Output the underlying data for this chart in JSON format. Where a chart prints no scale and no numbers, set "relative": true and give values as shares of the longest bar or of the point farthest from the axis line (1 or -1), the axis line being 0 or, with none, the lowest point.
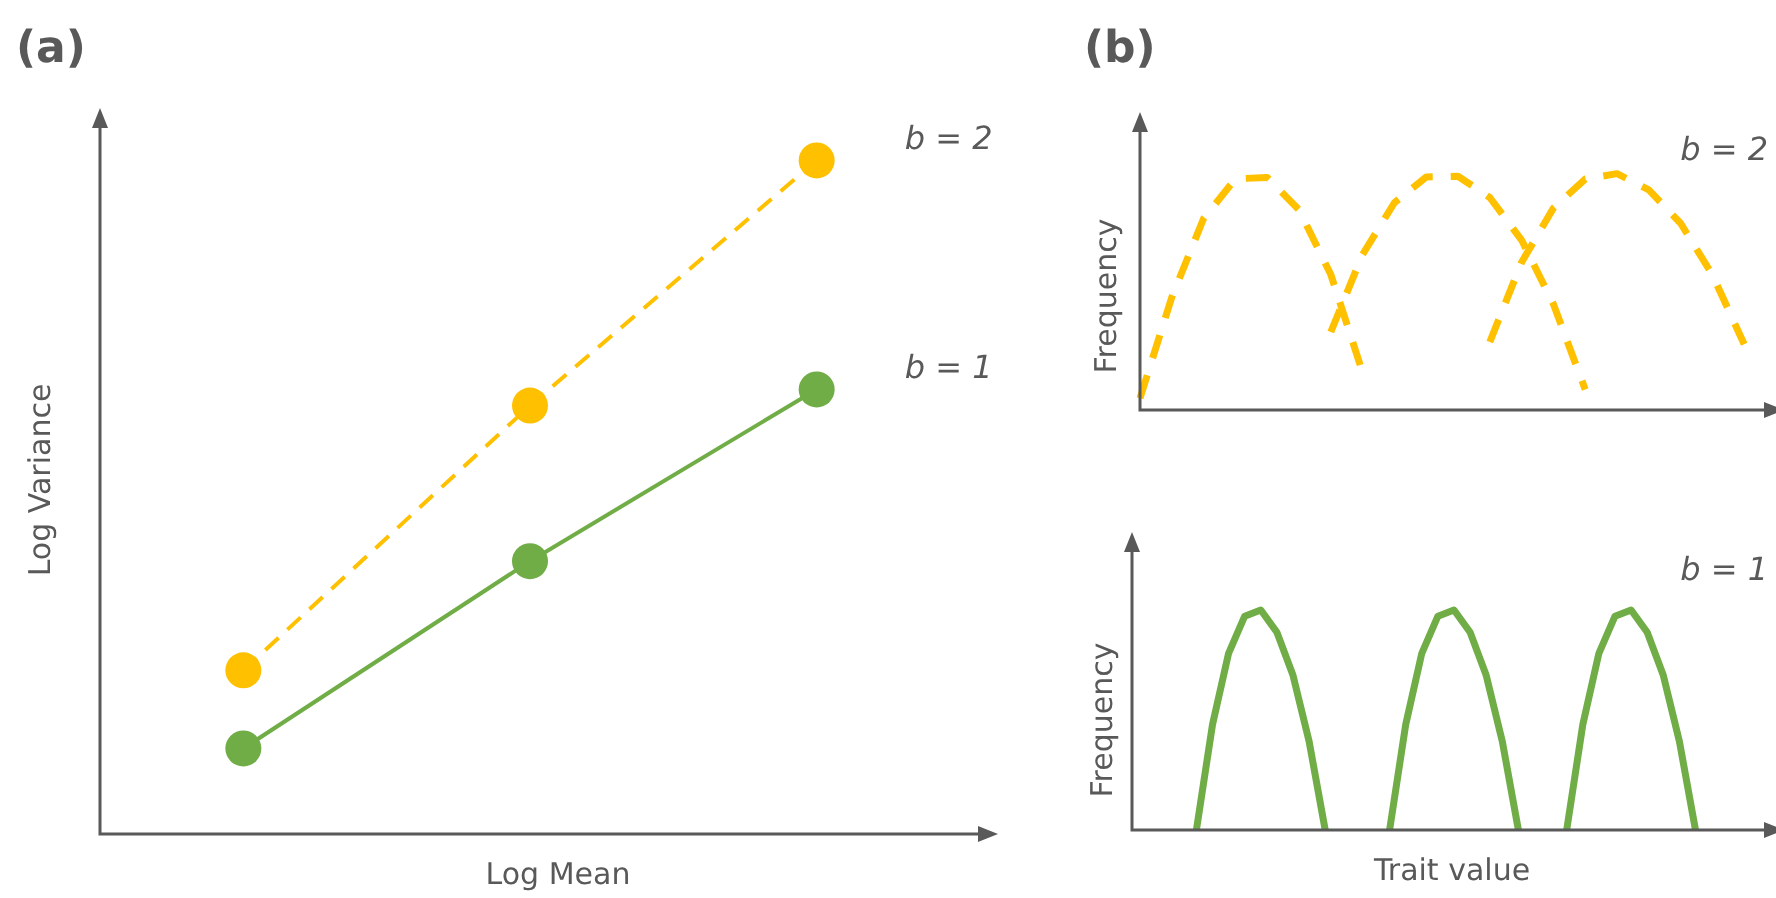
{
  "chart_data": [
    {
      "type": "line",
      "title": "(a)",
      "xlabel": "Log Mean",
      "ylabel": "Log Variance",
      "relative": true,
      "marker": "circle",
      "categories": [
        null,
        null,
        null
      ],
      "series": [
        {
          "name": "b = 2",
          "color": "#ffc000",
          "line_style": "dashed",
          "values": [
            0.243,
            0.636,
            1
          ]
        },
        {
          "name": "b = 1",
          "color": "#70ad47",
          "line_style": "solid",
          "values": [
            0.127,
            0.405,
            0.66
          ]
        }
      ]
    },
    {
      "type": "line",
      "title": "(b)",
      "ylabel": "Frequency",
      "relative": true,
      "line_style": "dashed",
      "annotations": [
        "b = 2"
      ],
      "categories": [
        null,
        null,
        null,
        null,
        null,
        null,
        null,
        null,
        null,
        null,
        null,
        null,
        null,
        null,
        null,
        null,
        null,
        null,
        null,
        null,
        null
      ],
      "series": [
        {
          "color": "#ffc000",
          "values": [
            0.05,
            0.477,
            0.81,
            0.978,
            0.984,
            0.847,
            0.573,
            0.159,
            null,
            null,
            null,
            null,
            null,
            null,
            null,
            null,
            null,
            null,
            null,
            null,
            null
          ]
        },
        {
          "color": "#ffc000",
          "values": [
            null,
            null,
            null,
            null,
            null,
            null,
            0.33,
            0.658,
            0.877,
            0.986,
            0.989,
            0.899,
            0.719,
            0.448,
            0.087,
            null,
            null,
            null,
            null,
            null,
            null
          ]
        },
        {
          "color": "#ffc000",
          "values": [
            null,
            null,
            null,
            null,
            null,
            null,
            null,
            null,
            null,
            null,
            null,
            0.288,
            0.625,
            0.854,
            0.977,
            1,
            0.931,
            0.79,
            0.572,
            0.278,
            null
          ]
        }
      ]
    },
    {
      "type": "line",
      "xlabel": "Trait value",
      "ylabel": "Frequency",
      "relative": true,
      "line_style": "solid",
      "annotations": [
        "b = 1"
      ],
      "categories": [
        null,
        null,
        null,
        null,
        null,
        null,
        null,
        null,
        null,
        null,
        null,
        null,
        null,
        null,
        null,
        null,
        null,
        null,
        null,
        null,
        null,
        null,
        null,
        null,
        null,
        null,
        null,
        null,
        null,
        null,
        null,
        null,
        null,
        null,
        null,
        null,
        null,
        null,
        null,
        null,
        null
      ],
      "series": [
        {
          "color": "#70ad47",
          "values": [
            null,
            null,
            null,
            null,
            0,
            0.479,
            0.803,
            0.972,
            1,
            0.899,
            0.703,
            0.403,
            0,
            null,
            null,
            null,
            null,
            null,
            null,
            null,
            null,
            null,
            null,
            null,
            null,
            null,
            null,
            null,
            null,
            null,
            null,
            null,
            null,
            null,
            null,
            null,
            null,
            null,
            null,
            null,
            null
          ]
        },
        {
          "color": "#70ad47",
          "values": [
            null,
            null,
            null,
            null,
            null,
            null,
            null,
            null,
            null,
            null,
            null,
            null,
            null,
            null,
            null,
            null,
            0,
            0.479,
            0.803,
            0.972,
            1,
            0.899,
            0.703,
            0.403,
            0,
            null,
            null,
            null,
            null,
            null,
            null,
            null,
            null,
            null,
            null,
            null,
            null,
            null,
            null,
            null,
            null
          ]
        },
        {
          "color": "#70ad47",
          "values": [
            null,
            null,
            null,
            null,
            null,
            null,
            null,
            null,
            null,
            null,
            null,
            null,
            null,
            null,
            null,
            null,
            null,
            null,
            null,
            null,
            null,
            null,
            null,
            null,
            null,
            null,
            null,
            0,
            0.479,
            0.803,
            0.972,
            1,
            0.899,
            0.703,
            0.403,
            0,
            null,
            null,
            null,
            null,
            null
          ]
        }
      ]
    }
  ]
}
